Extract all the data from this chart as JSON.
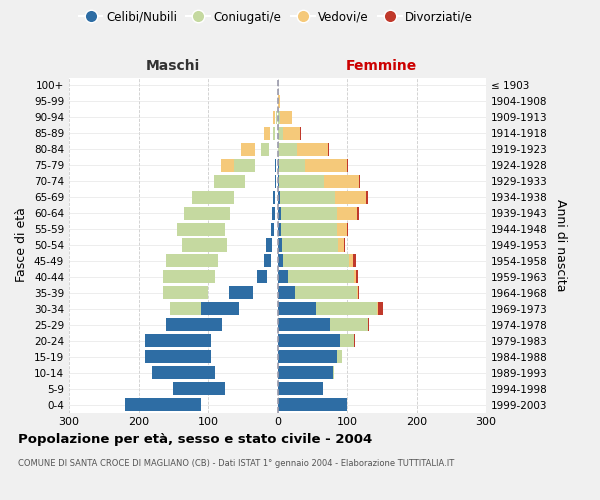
{
  "age_groups": [
    "0-4",
    "5-9",
    "10-14",
    "15-19",
    "20-24",
    "25-29",
    "30-34",
    "35-39",
    "40-44",
    "45-49",
    "50-54",
    "55-59",
    "60-64",
    "65-69",
    "70-74",
    "75-79",
    "80-84",
    "85-89",
    "90-94",
    "95-99",
    "100+"
  ],
  "birth_years": [
    "1999-2003",
    "1994-1998",
    "1989-1993",
    "1984-1988",
    "1979-1983",
    "1974-1978",
    "1969-1973",
    "1964-1968",
    "1959-1963",
    "1954-1958",
    "1949-1953",
    "1944-1948",
    "1939-1943",
    "1934-1938",
    "1929-1933",
    "1924-1928",
    "1919-1923",
    "1914-1918",
    "1909-1913",
    "1904-1908",
    "≤ 1903"
  ],
  "colors": {
    "celibi": "#2e6da4",
    "coniugati": "#c5d9a0",
    "vedovi": "#f5c97a",
    "divorziati": "#c0392b"
  },
  "males": {
    "celibi": [
      110,
      75,
      90,
      95,
      95,
      80,
      55,
      35,
      15,
      10,
      8,
      5,
      4,
      3,
      2,
      2,
      0,
      0,
      0,
      0,
      0
    ],
    "coniugati": [
      0,
      0,
      1,
      2,
      8,
      20,
      50,
      65,
      75,
      75,
      65,
      70,
      65,
      60,
      45,
      30,
      12,
      3,
      1,
      0,
      0
    ],
    "vedovi": [
      0,
      0,
      0,
      0,
      0,
      0,
      0,
      1,
      1,
      2,
      3,
      5,
      10,
      15,
      20,
      25,
      20,
      8,
      3,
      0,
      0
    ],
    "divorziati": [
      0,
      0,
      0,
      0,
      1,
      1,
      1,
      1,
      3,
      5,
      2,
      2,
      1,
      1,
      0,
      0,
      1,
      0,
      0,
      0,
      0
    ]
  },
  "females": {
    "celibi": [
      100,
      65,
      80,
      85,
      90,
      75,
      55,
      25,
      15,
      8,
      7,
      5,
      5,
      3,
      2,
      2,
      0,
      0,
      0,
      0,
      0
    ],
    "coniugati": [
      0,
      0,
      2,
      8,
      20,
      55,
      88,
      90,
      95,
      95,
      80,
      80,
      80,
      80,
      65,
      38,
      28,
      8,
      3,
      1,
      0
    ],
    "vedovi": [
      0,
      0,
      0,
      0,
      0,
      0,
      1,
      1,
      3,
      5,
      8,
      15,
      30,
      45,
      50,
      60,
      45,
      25,
      18,
      2,
      0
    ],
    "divorziati": [
      0,
      0,
      0,
      0,
      1,
      1,
      8,
      1,
      3,
      5,
      2,
      2,
      2,
      2,
      1,
      1,
      1,
      1,
      0,
      0,
      0
    ]
  },
  "title": "Popolazione per età, sesso e stato civile - 2004",
  "subtitle": "COMUNE DI SANTA CROCE DI MAGLIANO (CB) - Dati ISTAT 1° gennaio 2004 - Elaborazione TUTTITALIA.IT",
  "xlabel_left": "Maschi",
  "xlabel_right": "Femmine",
  "ylabel_left": "Fasce di età",
  "ylabel_right": "Anni di nascita",
  "xlim": 300,
  "legend_labels": [
    "Celibi/Nubili",
    "Coniugati/e",
    "Vedovi/e",
    "Divorziati/e"
  ],
  "bg_color": "#f0f0f0",
  "plot_bg": "#ffffff",
  "grid_color": "#cccccc"
}
